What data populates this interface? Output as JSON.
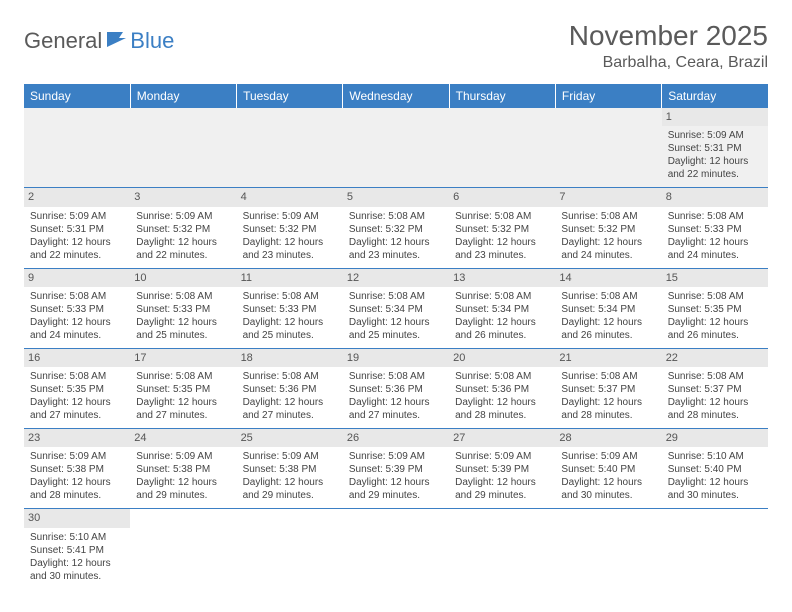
{
  "logo": {
    "part1": "General",
    "part2": "Blue"
  },
  "title": "November 2025",
  "location": "Barbalha, Ceara, Brazil",
  "day_headers": [
    "Sunday",
    "Monday",
    "Tuesday",
    "Wednesday",
    "Thursday",
    "Friday",
    "Saturday"
  ],
  "colors": {
    "header_bg": "#3b7fc4",
    "header_text": "#ffffff",
    "daynum_bg": "#e8e8e8",
    "border": "#3b7fc4",
    "logo_gray": "#5a5a5a",
    "logo_blue": "#3b7fc4"
  },
  "weeks": [
    [
      null,
      null,
      null,
      null,
      null,
      null,
      {
        "n": "1",
        "sr": "Sunrise: 5:09 AM",
        "ss": "Sunset: 5:31 PM",
        "d1": "Daylight: 12 hours",
        "d2": "and 22 minutes."
      }
    ],
    [
      {
        "n": "2",
        "sr": "Sunrise: 5:09 AM",
        "ss": "Sunset: 5:31 PM",
        "d1": "Daylight: 12 hours",
        "d2": "and 22 minutes."
      },
      {
        "n": "3",
        "sr": "Sunrise: 5:09 AM",
        "ss": "Sunset: 5:32 PM",
        "d1": "Daylight: 12 hours",
        "d2": "and 22 minutes."
      },
      {
        "n": "4",
        "sr": "Sunrise: 5:09 AM",
        "ss": "Sunset: 5:32 PM",
        "d1": "Daylight: 12 hours",
        "d2": "and 23 minutes."
      },
      {
        "n": "5",
        "sr": "Sunrise: 5:08 AM",
        "ss": "Sunset: 5:32 PM",
        "d1": "Daylight: 12 hours",
        "d2": "and 23 minutes."
      },
      {
        "n": "6",
        "sr": "Sunrise: 5:08 AM",
        "ss": "Sunset: 5:32 PM",
        "d1": "Daylight: 12 hours",
        "d2": "and 23 minutes."
      },
      {
        "n": "7",
        "sr": "Sunrise: 5:08 AM",
        "ss": "Sunset: 5:32 PM",
        "d1": "Daylight: 12 hours",
        "d2": "and 24 minutes."
      },
      {
        "n": "8",
        "sr": "Sunrise: 5:08 AM",
        "ss": "Sunset: 5:33 PM",
        "d1": "Daylight: 12 hours",
        "d2": "and 24 minutes."
      }
    ],
    [
      {
        "n": "9",
        "sr": "Sunrise: 5:08 AM",
        "ss": "Sunset: 5:33 PM",
        "d1": "Daylight: 12 hours",
        "d2": "and 24 minutes."
      },
      {
        "n": "10",
        "sr": "Sunrise: 5:08 AM",
        "ss": "Sunset: 5:33 PM",
        "d1": "Daylight: 12 hours",
        "d2": "and 25 minutes."
      },
      {
        "n": "11",
        "sr": "Sunrise: 5:08 AM",
        "ss": "Sunset: 5:33 PM",
        "d1": "Daylight: 12 hours",
        "d2": "and 25 minutes."
      },
      {
        "n": "12",
        "sr": "Sunrise: 5:08 AM",
        "ss": "Sunset: 5:34 PM",
        "d1": "Daylight: 12 hours",
        "d2": "and 25 minutes."
      },
      {
        "n": "13",
        "sr": "Sunrise: 5:08 AM",
        "ss": "Sunset: 5:34 PM",
        "d1": "Daylight: 12 hours",
        "d2": "and 26 minutes."
      },
      {
        "n": "14",
        "sr": "Sunrise: 5:08 AM",
        "ss": "Sunset: 5:34 PM",
        "d1": "Daylight: 12 hours",
        "d2": "and 26 minutes."
      },
      {
        "n": "15",
        "sr": "Sunrise: 5:08 AM",
        "ss": "Sunset: 5:35 PM",
        "d1": "Daylight: 12 hours",
        "d2": "and 26 minutes."
      }
    ],
    [
      {
        "n": "16",
        "sr": "Sunrise: 5:08 AM",
        "ss": "Sunset: 5:35 PM",
        "d1": "Daylight: 12 hours",
        "d2": "and 27 minutes."
      },
      {
        "n": "17",
        "sr": "Sunrise: 5:08 AM",
        "ss": "Sunset: 5:35 PM",
        "d1": "Daylight: 12 hours",
        "d2": "and 27 minutes."
      },
      {
        "n": "18",
        "sr": "Sunrise: 5:08 AM",
        "ss": "Sunset: 5:36 PM",
        "d1": "Daylight: 12 hours",
        "d2": "and 27 minutes."
      },
      {
        "n": "19",
        "sr": "Sunrise: 5:08 AM",
        "ss": "Sunset: 5:36 PM",
        "d1": "Daylight: 12 hours",
        "d2": "and 27 minutes."
      },
      {
        "n": "20",
        "sr": "Sunrise: 5:08 AM",
        "ss": "Sunset: 5:36 PM",
        "d1": "Daylight: 12 hours",
        "d2": "and 28 minutes."
      },
      {
        "n": "21",
        "sr": "Sunrise: 5:08 AM",
        "ss": "Sunset: 5:37 PM",
        "d1": "Daylight: 12 hours",
        "d2": "and 28 minutes."
      },
      {
        "n": "22",
        "sr": "Sunrise: 5:08 AM",
        "ss": "Sunset: 5:37 PM",
        "d1": "Daylight: 12 hours",
        "d2": "and 28 minutes."
      }
    ],
    [
      {
        "n": "23",
        "sr": "Sunrise: 5:09 AM",
        "ss": "Sunset: 5:38 PM",
        "d1": "Daylight: 12 hours",
        "d2": "and 28 minutes."
      },
      {
        "n": "24",
        "sr": "Sunrise: 5:09 AM",
        "ss": "Sunset: 5:38 PM",
        "d1": "Daylight: 12 hours",
        "d2": "and 29 minutes."
      },
      {
        "n": "25",
        "sr": "Sunrise: 5:09 AM",
        "ss": "Sunset: 5:38 PM",
        "d1": "Daylight: 12 hours",
        "d2": "and 29 minutes."
      },
      {
        "n": "26",
        "sr": "Sunrise: 5:09 AM",
        "ss": "Sunset: 5:39 PM",
        "d1": "Daylight: 12 hours",
        "d2": "and 29 minutes."
      },
      {
        "n": "27",
        "sr": "Sunrise: 5:09 AM",
        "ss": "Sunset: 5:39 PM",
        "d1": "Daylight: 12 hours",
        "d2": "and 29 minutes."
      },
      {
        "n": "28",
        "sr": "Sunrise: 5:09 AM",
        "ss": "Sunset: 5:40 PM",
        "d1": "Daylight: 12 hours",
        "d2": "and 30 minutes."
      },
      {
        "n": "29",
        "sr": "Sunrise: 5:10 AM",
        "ss": "Sunset: 5:40 PM",
        "d1": "Daylight: 12 hours",
        "d2": "and 30 minutes."
      }
    ],
    [
      {
        "n": "30",
        "sr": "Sunrise: 5:10 AM",
        "ss": "Sunset: 5:41 PM",
        "d1": "Daylight: 12 hours",
        "d2": "and 30 minutes."
      },
      null,
      null,
      null,
      null,
      null,
      null
    ]
  ]
}
